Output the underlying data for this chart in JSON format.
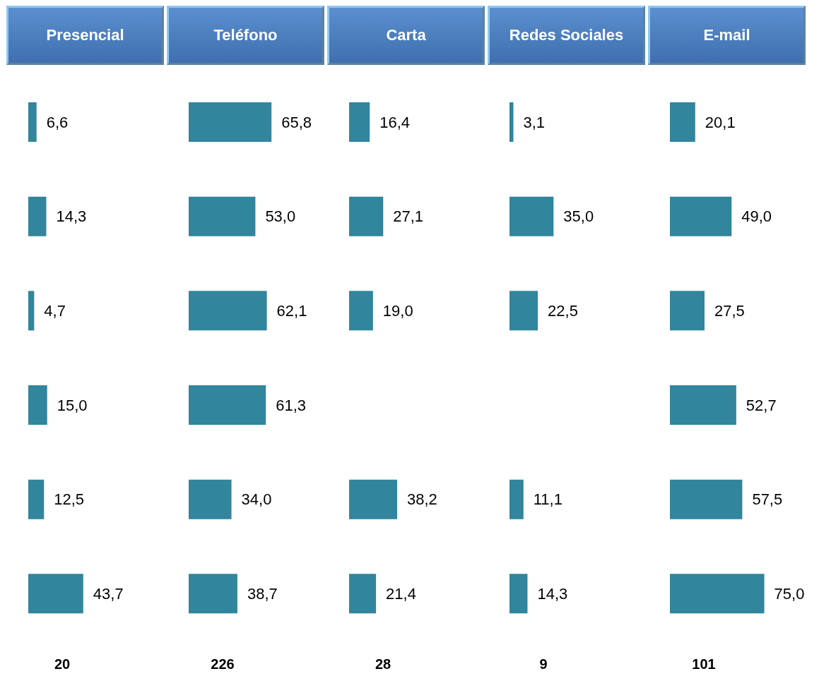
{
  "chart_data": [
    {
      "type": "bar",
      "orientation": "horizontal",
      "title": "Presencial",
      "categories": [
        null,
        null,
        null,
        null,
        null,
        null
      ],
      "values": [
        6.6,
        14.3,
        4.7,
        15.0,
        12.5,
        43.7
      ],
      "value_labels": [
        "6,6",
        "14,3",
        "4,7",
        "15,0",
        "12,5",
        "43,7"
      ],
      "color": "#31859c",
      "annotations": [
        "20"
      ]
    },
    {
      "type": "bar",
      "orientation": "horizontal",
      "title": "Teléfono",
      "categories": [
        null,
        null,
        null,
        null,
        null,
        null
      ],
      "values": [
        65.8,
        53.0,
        62.1,
        61.3,
        34.0,
        38.7
      ],
      "value_labels": [
        "65,8",
        "53,0",
        "62,1",
        "61,3",
        "34,0",
        "38,7"
      ],
      "color": "#31859c",
      "annotations": [
        "226"
      ]
    },
    {
      "type": "bar",
      "orientation": "horizontal",
      "title": "Carta",
      "categories": [
        null,
        null,
        null,
        null,
        null,
        null
      ],
      "values": [
        16.4,
        27.1,
        19.0,
        null,
        38.2,
        21.4
      ],
      "value_labels": [
        "16,4",
        "27,1",
        "19,0",
        null,
        "38,2",
        "21,4"
      ],
      "color": "#31859c",
      "annotations": [
        "28"
      ]
    },
    {
      "type": "bar",
      "orientation": "horizontal",
      "title": "Redes Sociales",
      "categories": [
        null,
        null,
        null,
        null,
        null,
        null
      ],
      "values": [
        3.1,
        35.0,
        22.5,
        null,
        11.1,
        14.3
      ],
      "value_labels": [
        "3,1",
        "35,0",
        "22,5",
        null,
        "11,1",
        "14,3"
      ],
      "color": "#31859c",
      "annotations": [
        "9"
      ]
    },
    {
      "type": "bar",
      "orientation": "horizontal",
      "title": "E-mail",
      "categories": [
        null,
        null,
        null,
        null,
        null,
        null
      ],
      "values": [
        20.1,
        49.0,
        27.5,
        52.7,
        57.5,
        75.0
      ],
      "value_labels": [
        "20,1",
        "49,0",
        "27,5",
        "52,7",
        "57,5",
        "75,0"
      ],
      "color": "#31859c",
      "annotations": [
        "101"
      ]
    }
  ]
}
